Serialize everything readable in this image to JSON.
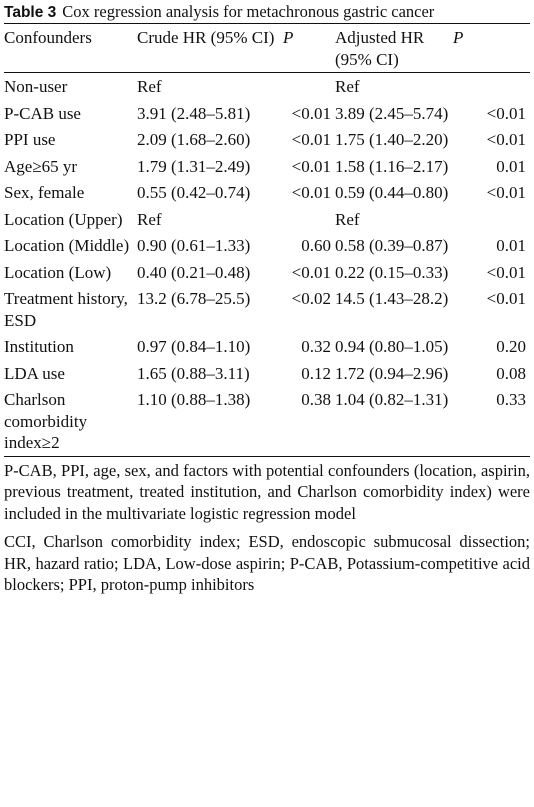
{
  "table": {
    "label": "Table 3",
    "title": "Cox regression analysis for metachronous gastric cancer",
    "columns": [
      "Confounders",
      "Crude HR (95% CI)",
      "P",
      "Adjusted HR (95% CI)",
      "P"
    ],
    "rows": [
      [
        "Non-user",
        "Ref",
        null,
        "Ref",
        null
      ],
      [
        "P-CAB use",
        "3.91 (2.48–5.81)",
        "<0.01",
        "3.89 (2.45–5.74)",
        "<0.01"
      ],
      [
        "PPI use",
        "2.09 (1.68–2.60)",
        "<0.01",
        "1.75 (1.40–2.20)",
        "<0.01"
      ],
      [
        "Age≥65 yr",
        "1.79 (1.31–2.49)",
        "<0.01",
        "1.58 (1.16–2.17)",
        "0.01"
      ],
      [
        "Sex, female",
        "0.55 (0.42–0.74)",
        "<0.01",
        "0.59 (0.44–0.80)",
        "<0.01"
      ],
      [
        "Location (Upper)",
        "Ref",
        null,
        "Ref",
        null
      ],
      [
        "Location (Middle)",
        "0.90 (0.61–1.33)",
        "0.60",
        "0.58 (0.39–0.87)",
        "0.01"
      ],
      [
        "Location (Low)",
        "0.40 (0.21–0.48)",
        "<0.01",
        "0.22 (0.15–0.33)",
        "<0.01"
      ],
      [
        "Treatment history, ESD",
        "13.2 (6.78–25.5)",
        "<0.02",
        "14.5 (1.43–28.2)",
        "<0.01"
      ],
      [
        "Institution",
        "0.97 (0.84–1.10)",
        "0.32",
        "0.94 (0.80–1.05)",
        "0.20"
      ],
      [
        "LDA use",
        "1.65 (0.88–3.11)",
        "0.12",
        "1.72 (0.94–2.96)",
        "0.08"
      ],
      [
        "Charlson comorbidity index≥2",
        "1.10 (0.88–1.38)",
        "0.38",
        "1.04 (0.82–1.31)",
        "0.33"
      ]
    ],
    "footnotes": [
      "P-CAB, PPI, age, sex, and factors with potential confounders (location, aspirin, previous treatment, treated institution, and Charlson comorbidity index) were included in the multivariate logistic regression model",
      "CCI, Charlson comorbidity index; ESD, endoscopic submucosal dissection; HR, hazard ratio; LDA, Low-dose aspirin; P-CAB, Potassium-competitive acid blockers; PPI, proton-pump inhibitors"
    ]
  }
}
